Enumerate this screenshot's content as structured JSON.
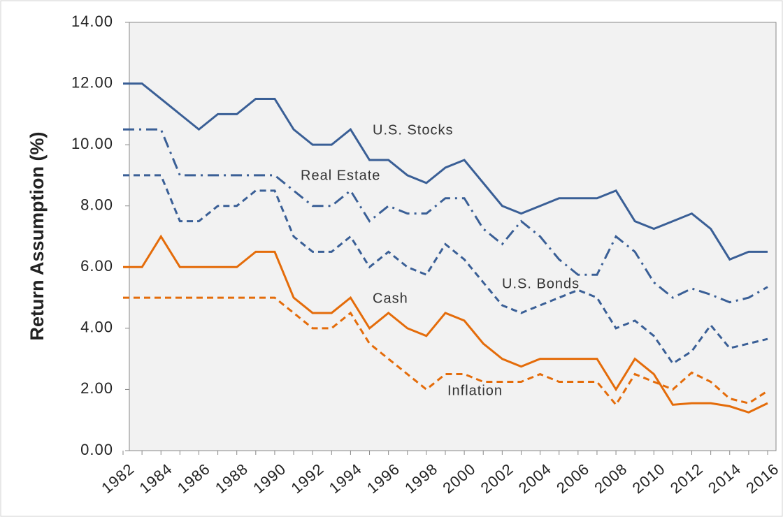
{
  "chart_data": {
    "type": "line",
    "y_label": "Return Assumption (%)",
    "categories": [
      "1982",
      null,
      "1984",
      null,
      "1986",
      null,
      "1988",
      null,
      "1990",
      null,
      "1992",
      null,
      "1994",
      null,
      "1996",
      null,
      "1998",
      null,
      "2000",
      null,
      "2002",
      null,
      "2004",
      null,
      "2006",
      null,
      "2008",
      null,
      "2010",
      null,
      "2012",
      null,
      "2014",
      null,
      "2016"
    ],
    "series": [
      {
        "name": "U.S. Stocks",
        "color": "#3a5f96",
        "style": "solid",
        "values": [
          12,
          12,
          11.5,
          11,
          10.5,
          11,
          11,
          11.5,
          11.5,
          10.5,
          10,
          10,
          10.5,
          9.5,
          9.5,
          9,
          8.75,
          9.25,
          9.5,
          8.75,
          8,
          7.75,
          8,
          8.25,
          8.25,
          8.25,
          8.5,
          7.5,
          7.25,
          7.5,
          7.75,
          7.25,
          6.25,
          6.5,
          6.5
        ]
      },
      {
        "name": "Real Estate",
        "color": "#3a5f96",
        "style": "dashdot",
        "values": [
          10.5,
          10.5,
          10.5,
          9,
          9,
          9,
          9,
          9,
          9,
          8.5,
          8,
          8,
          8.5,
          7.5,
          8,
          7.75,
          7.75,
          8.25,
          8.25,
          7.25,
          6.75,
          7.5,
          7,
          6.25,
          5.75,
          5.75,
          7,
          6.5,
          5.5,
          5,
          5.3,
          5.1,
          4.85,
          5,
          5.35
        ]
      },
      {
        "name": "U.S. Bonds",
        "color": "#3a5f96",
        "style": "dashed",
        "values": [
          9,
          9,
          9,
          7.5,
          7.5,
          8,
          8,
          8.5,
          8.5,
          7,
          6.5,
          6.5,
          7,
          6,
          6.5,
          6,
          5.75,
          6.75,
          6.25,
          5.5,
          4.75,
          4.5,
          4.75,
          5,
          5.25,
          5,
          4,
          4.25,
          3.75,
          2.85,
          3.25,
          4.1,
          3.35,
          3.5,
          3.65
        ]
      },
      {
        "name": "Cash",
        "color": "#e46c0a",
        "style": "solid",
        "values": [
          6,
          6,
          7,
          6,
          6,
          6,
          6,
          6.5,
          6.5,
          5,
          4.5,
          4.5,
          5,
          4,
          4.5,
          4,
          3.75,
          4.5,
          4.25,
          3.5,
          3,
          2.75,
          3,
          3,
          3,
          3,
          2,
          3,
          2.5,
          1.5,
          1.55,
          1.55,
          1.45,
          1.25,
          1.55
        ]
      },
      {
        "name": "Inflation",
        "color": "#e46c0a",
        "style": "dashed",
        "values": [
          5,
          5,
          5,
          5,
          5,
          5,
          5,
          5,
          5,
          4.5,
          4,
          4,
          4.5,
          3.5,
          3,
          2.5,
          2,
          2.5,
          2.5,
          2.25,
          2.25,
          2.25,
          2.5,
          2.25,
          2.25,
          2.25,
          1.5,
          2.5,
          2.25,
          2,
          2.55,
          2.25,
          1.7,
          1.55,
          1.95
        ]
      }
    ],
    "ylim": [
      0,
      14
    ],
    "yticks": [
      {
        "value": 0,
        "label": "0.00"
      },
      {
        "value": 2,
        "label": "2.00"
      },
      {
        "value": 4,
        "label": "4.00"
      },
      {
        "value": 6,
        "label": "6.00"
      },
      {
        "value": 8,
        "label": "8.00"
      },
      {
        "value": 10,
        "label": "10.00"
      },
      {
        "value": 12,
        "label": "12.00"
      },
      {
        "value": 14,
        "label": "14.00"
      }
    ],
    "grid": false,
    "legend": false
  }
}
